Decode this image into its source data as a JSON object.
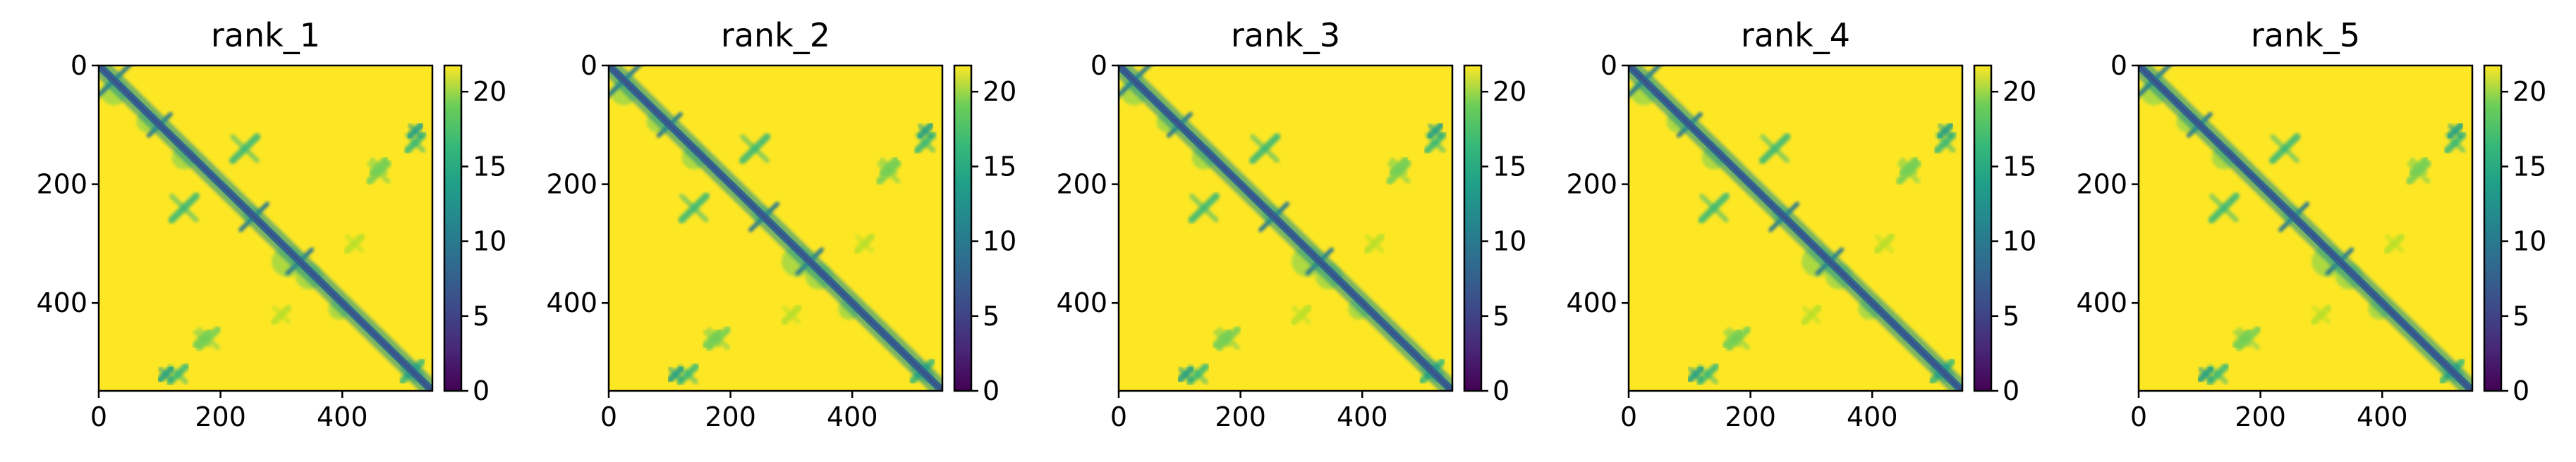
{
  "colors": {
    "colormap": "viridis",
    "high": "#fde725",
    "mid": "#21918c",
    "low": "#440154",
    "axes": "#000000",
    "background": "#ffffff"
  },
  "chart_data": [
    {
      "type": "heatmap",
      "title": "rank_1",
      "matrix_size": 548,
      "x_ticks": [
        "0",
        "200",
        "400"
      ],
      "y_ticks": [
        "0",
        "200",
        "400"
      ],
      "xlim": [
        0,
        548
      ],
      "ylim": [
        548,
        0
      ],
      "colorbar": {
        "ticks": [
          "0",
          "5",
          "10",
          "15",
          "20"
        ],
        "range": [
          0,
          21.75
        ]
      },
      "grid": false
    },
    {
      "type": "heatmap",
      "title": "rank_2",
      "matrix_size": 548,
      "x_ticks": [
        "0",
        "200",
        "400"
      ],
      "y_ticks": [
        "0",
        "200",
        "400"
      ],
      "xlim": [
        0,
        548
      ],
      "ylim": [
        548,
        0
      ],
      "colorbar": {
        "ticks": [
          "0",
          "5",
          "10",
          "15",
          "20"
        ],
        "range": [
          0,
          21.75
        ]
      },
      "grid": false
    },
    {
      "type": "heatmap",
      "title": "rank_3",
      "matrix_size": 548,
      "x_ticks": [
        "0",
        "200",
        "400"
      ],
      "y_ticks": [
        "0",
        "200",
        "400"
      ],
      "xlim": [
        0,
        548
      ],
      "ylim": [
        548,
        0
      ],
      "colorbar": {
        "ticks": [
          "0",
          "5",
          "10",
          "15",
          "20"
        ],
        "range": [
          0,
          21.75
        ]
      },
      "grid": false
    },
    {
      "type": "heatmap",
      "title": "rank_4",
      "matrix_size": 548,
      "x_ticks": [
        "0",
        "200",
        "400"
      ],
      "y_ticks": [
        "0",
        "200",
        "400"
      ],
      "xlim": [
        0,
        548
      ],
      "ylim": [
        548,
        0
      ],
      "colorbar": {
        "ticks": [
          "0",
          "5",
          "10",
          "15",
          "20"
        ],
        "range": [
          0,
          21.75
        ]
      },
      "grid": false
    },
    {
      "type": "heatmap",
      "title": "rank_5",
      "matrix_size": 548,
      "x_ticks": [
        "0",
        "200",
        "400"
      ],
      "y_ticks": [
        "0",
        "200",
        "400"
      ],
      "xlim": [
        0,
        548
      ],
      "ylim": [
        548,
        0
      ],
      "colorbar": {
        "ticks": [
          "0",
          "5",
          "10",
          "15",
          "20"
        ],
        "range": [
          0,
          21.75
        ]
      },
      "grid": false
    }
  ]
}
